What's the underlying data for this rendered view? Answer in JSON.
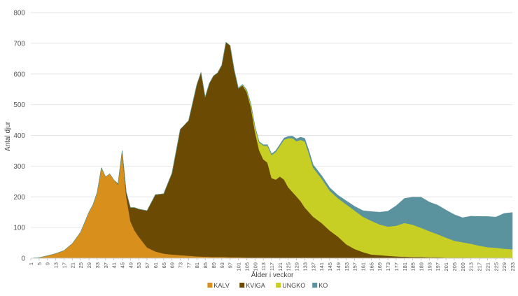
{
  "chart_data": {
    "type": "area",
    "stacked": true,
    "title": "",
    "xlabel": "Ålder i veckor",
    "ylabel": "Antal djur",
    "xlim": [
      1,
      233
    ],
    "ylim": [
      0,
      800
    ],
    "y_ticks": [
      0,
      100,
      200,
      300,
      400,
      500,
      600,
      700,
      800
    ],
    "x_ticks": [
      1,
      5,
      9,
      13,
      17,
      21,
      25,
      29,
      33,
      37,
      41,
      45,
      49,
      53,
      57,
      61,
      65,
      69,
      73,
      77,
      81,
      85,
      89,
      93,
      97,
      101,
      105,
      109,
      113,
      117,
      121,
      125,
      129,
      133,
      137,
      141,
      145,
      149,
      153,
      157,
      161,
      165,
      169,
      173,
      177,
      181,
      185,
      189,
      193,
      197,
      201,
      205,
      209,
      213,
      217,
      221,
      225,
      229,
      233
    ],
    "grid": "horizontal",
    "legend_position": "bottom",
    "series": [
      {
        "name": "KALV",
        "color": "#d88f1c",
        "points": [
          [
            1,
            0
          ],
          [
            5,
            2
          ],
          [
            9,
            8
          ],
          [
            13,
            15
          ],
          [
            17,
            25
          ],
          [
            21,
            48
          ],
          [
            25,
            85
          ],
          [
            29,
            150
          ],
          [
            31,
            175
          ],
          [
            33,
            215
          ],
          [
            35,
            295
          ],
          [
            37,
            265
          ],
          [
            39,
            275
          ],
          [
            41,
            255
          ],
          [
            43,
            240
          ],
          [
            45,
            345
          ],
          [
            47,
            200
          ],
          [
            49,
            120
          ],
          [
            51,
            90
          ],
          [
            53,
            70
          ],
          [
            57,
            35
          ],
          [
            61,
            22
          ],
          [
            65,
            15
          ],
          [
            69,
            12
          ],
          [
            73,
            10
          ],
          [
            77,
            8
          ],
          [
            81,
            6
          ],
          [
            85,
            5
          ],
          [
            89,
            4
          ],
          [
            93,
            4
          ],
          [
            97,
            3
          ],
          [
            101,
            3
          ],
          [
            105,
            2
          ],
          [
            109,
            2
          ],
          [
            113,
            2
          ],
          [
            117,
            1
          ],
          [
            121,
            1
          ],
          [
            125,
            1
          ],
          [
            129,
            1
          ],
          [
            133,
            0
          ],
          [
            233,
            0
          ]
        ]
      },
      {
        "name": "KVIGA",
        "color": "#6b4a04",
        "points": [
          [
            1,
            0
          ],
          [
            41,
            0
          ],
          [
            45,
            5
          ],
          [
            47,
            15
          ],
          [
            49,
            45
          ],
          [
            51,
            75
          ],
          [
            53,
            90
          ],
          [
            57,
            120
          ],
          [
            61,
            185
          ],
          [
            65,
            195
          ],
          [
            69,
            265
          ],
          [
            73,
            410
          ],
          [
            77,
            440
          ],
          [
            81,
            560
          ],
          [
            83,
            600
          ],
          [
            85,
            520
          ],
          [
            87,
            565
          ],
          [
            89,
            590
          ],
          [
            91,
            600
          ],
          [
            93,
            625
          ],
          [
            95,
            700
          ],
          [
            97,
            690
          ],
          [
            99,
            610
          ],
          [
            101,
            550
          ],
          [
            103,
            560
          ],
          [
            105,
            540
          ],
          [
            107,
            490
          ],
          [
            109,
            410
          ],
          [
            111,
            350
          ],
          [
            113,
            320
          ],
          [
            115,
            310
          ],
          [
            117,
            260
          ],
          [
            119,
            255
          ],
          [
            121,
            265
          ],
          [
            123,
            255
          ],
          [
            125,
            230
          ],
          [
            127,
            215
          ],
          [
            129,
            200
          ],
          [
            131,
            185
          ],
          [
            133,
            165
          ],
          [
            135,
            150
          ],
          [
            137,
            135
          ],
          [
            141,
            115
          ],
          [
            145,
            90
          ],
          [
            149,
            70
          ],
          [
            153,
            45
          ],
          [
            157,
            30
          ],
          [
            161,
            20
          ],
          [
            165,
            12
          ],
          [
            169,
            10
          ],
          [
            173,
            8
          ],
          [
            177,
            6
          ],
          [
            181,
            5
          ],
          [
            185,
            4
          ],
          [
            189,
            4
          ],
          [
            193,
            3
          ],
          [
            197,
            3
          ],
          [
            201,
            2
          ],
          [
            205,
            2
          ],
          [
            209,
            2
          ],
          [
            213,
            2
          ],
          [
            217,
            1
          ],
          [
            221,
            1
          ],
          [
            225,
            1
          ],
          [
            229,
            1
          ],
          [
            233,
            1
          ]
        ]
      },
      {
        "name": "UNGKO",
        "color": "#c8cf24",
        "points": [
          [
            1,
            0
          ],
          [
            101,
            0
          ],
          [
            103,
            2
          ],
          [
            105,
            5
          ],
          [
            107,
            10
          ],
          [
            109,
            15
          ],
          [
            111,
            25
          ],
          [
            113,
            45
          ],
          [
            115,
            55
          ],
          [
            117,
            75
          ],
          [
            119,
            90
          ],
          [
            121,
            100
          ],
          [
            123,
            130
          ],
          [
            125,
            160
          ],
          [
            127,
            175
          ],
          [
            129,
            180
          ],
          [
            131,
            200
          ],
          [
            133,
            215
          ],
          [
            135,
            190
          ],
          [
            137,
            160
          ],
          [
            141,
            145
          ],
          [
            145,
            130
          ],
          [
            149,
            125
          ],
          [
            153,
            130
          ],
          [
            157,
            125
          ],
          [
            161,
            115
          ],
          [
            165,
            110
          ],
          [
            169,
            100
          ],
          [
            173,
            95
          ],
          [
            177,
            100
          ],
          [
            181,
            110
          ],
          [
            185,
            105
          ],
          [
            189,
            95
          ],
          [
            193,
            85
          ],
          [
            197,
            75
          ],
          [
            201,
            65
          ],
          [
            205,
            55
          ],
          [
            209,
            50
          ],
          [
            213,
            45
          ],
          [
            217,
            40
          ],
          [
            221,
            35
          ],
          [
            225,
            33
          ],
          [
            229,
            30
          ],
          [
            233,
            28
          ]
        ]
      },
      {
        "name": "KO",
        "color": "#5a929e",
        "points": [
          [
            1,
            0
          ],
          [
            97,
            0
          ],
          [
            101,
            2
          ],
          [
            105,
            2
          ],
          [
            109,
            3
          ],
          [
            113,
            3
          ],
          [
            117,
            4
          ],
          [
            121,
            5
          ],
          [
            125,
            6
          ],
          [
            129,
            8
          ],
          [
            133,
            10
          ],
          [
            137,
            10
          ],
          [
            141,
            10
          ],
          [
            145,
            10
          ],
          [
            149,
            10
          ],
          [
            153,
            12
          ],
          [
            157,
            14
          ],
          [
            161,
            20
          ],
          [
            165,
            30
          ],
          [
            169,
            40
          ],
          [
            173,
            50
          ],
          [
            177,
            65
          ],
          [
            181,
            80
          ],
          [
            185,
            90
          ],
          [
            189,
            100
          ],
          [
            193,
            95
          ],
          [
            197,
            95
          ],
          [
            201,
            90
          ],
          [
            205,
            85
          ],
          [
            209,
            80
          ],
          [
            213,
            90
          ],
          [
            217,
            95
          ],
          [
            221,
            100
          ],
          [
            225,
            100
          ],
          [
            229,
            115
          ],
          [
            233,
            120
          ]
        ]
      }
    ]
  }
}
